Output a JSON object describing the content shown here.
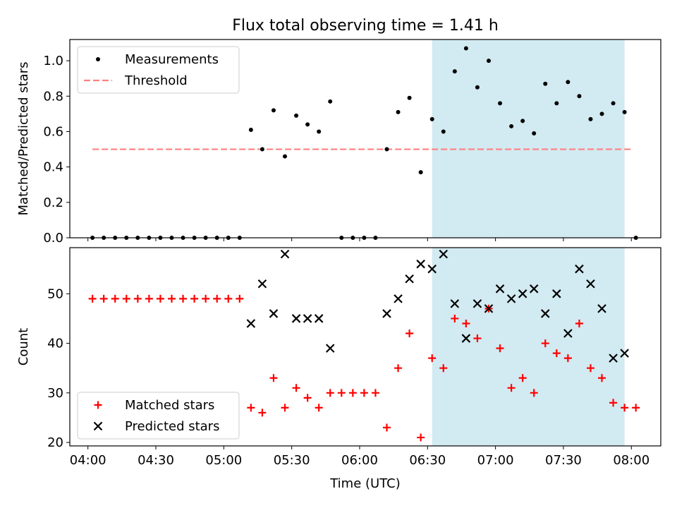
{
  "title": "Flux total observing time = 1.41 h",
  "colors": {
    "highlight": "#add8e6",
    "threshold": "#ff8080",
    "matched": "#ff0000",
    "predicted": "#000000",
    "measurement": "#000000"
  },
  "chart_data": [
    {
      "type": "scatter",
      "panel": "top",
      "title": "Flux total observing time = 1.41 h",
      "xlabel": "",
      "ylabel": "Matched/Predicted stars",
      "xlim": [
        "03:52",
        "08:13"
      ],
      "ylim": [
        0,
        1.12
      ],
      "x_ticks": [
        "04:00",
        "04:30",
        "05:00",
        "05:30",
        "06:00",
        "06:30",
        "07:00",
        "07:30",
        "08:00"
      ],
      "y_ticks": [
        "0.0",
        "0.2",
        "0.4",
        "0.6",
        "0.8",
        "1.0"
      ],
      "highlight_span": [
        "06:32",
        "07:57"
      ],
      "legend": {
        "position": "top-left",
        "entries": [
          "Measurements",
          "Threshold"
        ]
      },
      "threshold": {
        "name": "Threshold",
        "y": 0.5,
        "x_range": [
          "04:02",
          "08:00"
        ]
      },
      "series": [
        {
          "name": "Measurements",
          "marker": "dot",
          "points": [
            [
              "04:02",
              0
            ],
            [
              "04:07",
              0
            ],
            [
              "04:12",
              0
            ],
            [
              "04:17",
              0
            ],
            [
              "04:22",
              0
            ],
            [
              "04:27",
              0
            ],
            [
              "04:32",
              0
            ],
            [
              "04:37",
              0
            ],
            [
              "04:42",
              0
            ],
            [
              "04:47",
              0
            ],
            [
              "04:52",
              0
            ],
            [
              "04:57",
              0
            ],
            [
              "05:02",
              0
            ],
            [
              "05:07",
              0
            ],
            [
              "05:12",
              0.61
            ],
            [
              "05:17",
              0.5
            ],
            [
              "05:22",
              0.72
            ],
            [
              "05:27",
              0.46
            ],
            [
              "05:32",
              0.69
            ],
            [
              "05:37",
              0.64
            ],
            [
              "05:42",
              0.6
            ],
            [
              "05:47",
              0.77
            ],
            [
              "05:52",
              0
            ],
            [
              "05:57",
              0
            ],
            [
              "06:02",
              0
            ],
            [
              "06:07",
              0
            ],
            [
              "06:12",
              0.5
            ],
            [
              "06:17",
              0.71
            ],
            [
              "06:22",
              0.79
            ],
            [
              "06:27",
              0.37
            ],
            [
              "06:32",
              0.67
            ],
            [
              "06:37",
              0.6
            ],
            [
              "06:42",
              0.94
            ],
            [
              "06:47",
              1.07
            ],
            [
              "06:52",
              0.85
            ],
            [
              "06:57",
              1.0
            ],
            [
              "07:02",
              0.76
            ],
            [
              "07:07",
              0.63
            ],
            [
              "07:12",
              0.66
            ],
            [
              "07:17",
              0.59
            ],
            [
              "07:22",
              0.87
            ],
            [
              "07:27",
              0.76
            ],
            [
              "07:32",
              0.88
            ],
            [
              "07:37",
              0.8
            ],
            [
              "07:42",
              0.67
            ],
            [
              "07:47",
              0.7
            ],
            [
              "07:52",
              0.76
            ],
            [
              "07:57",
              0.71
            ],
            [
              "08:02",
              0
            ]
          ]
        }
      ]
    },
    {
      "type": "scatter",
      "panel": "bottom",
      "xlabel": "Time (UTC)",
      "ylabel": "Count",
      "xlim": [
        "03:52",
        "08:13"
      ],
      "ylim": [
        19.3,
        59.3
      ],
      "x_ticks": [
        "04:00",
        "04:30",
        "05:00",
        "05:30",
        "06:00",
        "06:30",
        "07:00",
        "07:30",
        "08:00"
      ],
      "y_ticks": [
        "20",
        "30",
        "40",
        "50"
      ],
      "highlight_span": [
        "06:32",
        "07:57"
      ],
      "legend": {
        "position": "bottom-left",
        "entries": [
          "Matched stars",
          "Predicted stars"
        ]
      },
      "series": [
        {
          "name": "Matched stars",
          "marker": "plus",
          "points": [
            [
              "04:02",
              49
            ],
            [
              "04:07",
              49
            ],
            [
              "04:12",
              49
            ],
            [
              "04:17",
              49
            ],
            [
              "04:22",
              49
            ],
            [
              "04:27",
              49
            ],
            [
              "04:32",
              49
            ],
            [
              "04:37",
              49
            ],
            [
              "04:42",
              49
            ],
            [
              "04:47",
              49
            ],
            [
              "04:52",
              49
            ],
            [
              "04:57",
              49
            ],
            [
              "05:02",
              49
            ],
            [
              "05:07",
              49
            ],
            [
              "05:12",
              27
            ],
            [
              "05:17",
              26
            ],
            [
              "05:22",
              33
            ],
            [
              "05:27",
              27
            ],
            [
              "05:32",
              31
            ],
            [
              "05:37",
              29
            ],
            [
              "05:42",
              27
            ],
            [
              "05:47",
              30
            ],
            [
              "05:52",
              30
            ],
            [
              "05:57",
              30
            ],
            [
              "06:02",
              30
            ],
            [
              "06:07",
              30
            ],
            [
              "06:12",
              23
            ],
            [
              "06:17",
              35
            ],
            [
              "06:22",
              42
            ],
            [
              "06:27",
              21
            ],
            [
              "06:32",
              37
            ],
            [
              "06:37",
              35
            ],
            [
              "06:42",
              45
            ],
            [
              "06:47",
              44
            ],
            [
              "06:52",
              41
            ],
            [
              "06:57",
              47
            ],
            [
              "07:02",
              39
            ],
            [
              "07:07",
              31
            ],
            [
              "07:12",
              33
            ],
            [
              "07:17",
              30
            ],
            [
              "07:22",
              40
            ],
            [
              "07:27",
              38
            ],
            [
              "07:32",
              37
            ],
            [
              "07:37",
              44
            ],
            [
              "07:42",
              35
            ],
            [
              "07:47",
              33
            ],
            [
              "07:52",
              28
            ],
            [
              "07:57",
              27
            ],
            [
              "08:02",
              27
            ]
          ]
        },
        {
          "name": "Predicted stars",
          "marker": "x",
          "points": [
            [
              "05:12",
              44
            ],
            [
              "05:17",
              52
            ],
            [
              "05:22",
              46
            ],
            [
              "05:27",
              58
            ],
            [
              "05:32",
              45
            ],
            [
              "05:37",
              45
            ],
            [
              "05:42",
              45
            ],
            [
              "05:47",
              39
            ],
            [
              "06:12",
              46
            ],
            [
              "06:17",
              49
            ],
            [
              "06:22",
              53
            ],
            [
              "06:27",
              56
            ],
            [
              "06:32",
              55
            ],
            [
              "06:37",
              58
            ],
            [
              "06:42",
              48
            ],
            [
              "06:47",
              41
            ],
            [
              "06:52",
              48
            ],
            [
              "06:57",
              47
            ],
            [
              "07:02",
              51
            ],
            [
              "07:07",
              49
            ],
            [
              "07:12",
              50
            ],
            [
              "07:17",
              51
            ],
            [
              "07:22",
              46
            ],
            [
              "07:27",
              50
            ],
            [
              "07:32",
              42
            ],
            [
              "07:37",
              55
            ],
            [
              "07:42",
              52
            ],
            [
              "07:47",
              47
            ],
            [
              "07:52",
              37
            ],
            [
              "07:57",
              38
            ]
          ]
        }
      ]
    }
  ]
}
